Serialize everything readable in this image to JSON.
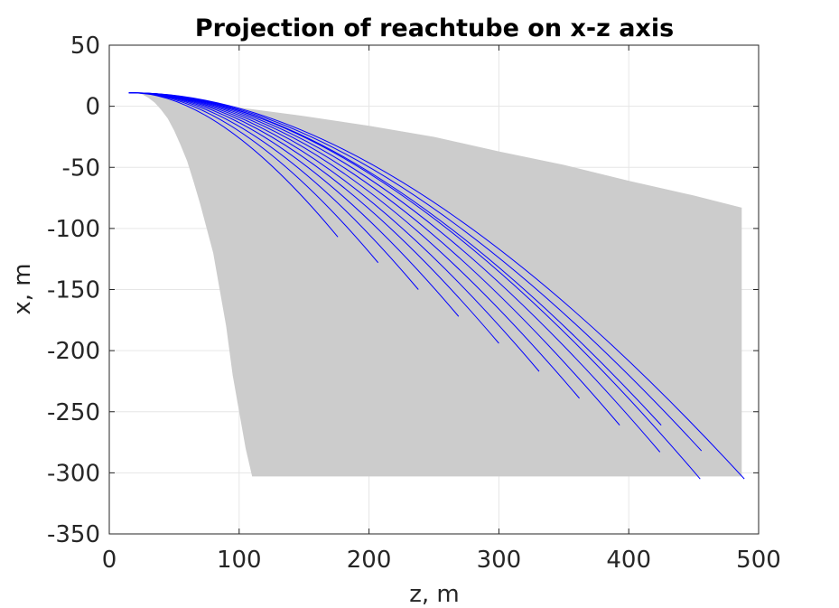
{
  "chart_data": {
    "type": "line",
    "title": "Projection of reachtube on x-z axis",
    "xlabel": "z, m",
    "ylabel": "x, m",
    "xlim": [
      0,
      500
    ],
    "ylim": [
      -350,
      50
    ],
    "xticks": [
      0,
      100,
      200,
      300,
      400,
      500
    ],
    "yticks": [
      50,
      0,
      -50,
      -100,
      -150,
      -200,
      -250,
      -300,
      -350
    ],
    "grid": true,
    "colors": {
      "reachtube": "#cccccc",
      "trajectory": "#0000ff",
      "grid": "#e6e6e6",
      "axis": "#262626"
    },
    "reachtube": {
      "upper": [
        [
          12,
          11
        ],
        [
          20,
          11
        ],
        [
          30,
          10
        ],
        [
          50,
          7
        ],
        [
          80,
          2
        ],
        [
          100,
          -1
        ],
        [
          150,
          -8
        ],
        [
          200,
          -16
        ],
        [
          250,
          -25
        ],
        [
          300,
          -37
        ],
        [
          350,
          -48
        ],
        [
          400,
          -61
        ],
        [
          450,
          -73
        ],
        [
          487,
          -83
        ],
        [
          487,
          -85
        ]
      ],
      "lower_right": [
        487,
        -303
      ],
      "lower_left": [
        110,
        -303
      ],
      "lower": [
        [
          110,
          -303
        ],
        [
          105,
          -280
        ],
        [
          100,
          -250
        ],
        [
          95,
          -220
        ],
        [
          90,
          -180
        ],
        [
          85,
          -150
        ],
        [
          80,
          -120
        ],
        [
          75,
          -100
        ],
        [
          70,
          -80
        ],
        [
          65,
          -62
        ],
        [
          60,
          -45
        ],
        [
          55,
          -32
        ],
        [
          50,
          -20
        ],
        [
          45,
          -10
        ],
        [
          40,
          -3
        ],
        [
          35,
          3
        ],
        [
          30,
          7
        ],
        [
          25,
          10
        ],
        [
          20,
          11
        ],
        [
          12,
          11
        ]
      ]
    },
    "series": [
      {
        "end": [
          176,
          -107
        ]
      },
      {
        "end": [
          207,
          -128
        ]
      },
      {
        "end": [
          238,
          -150
        ]
      },
      {
        "end": [
          269,
          -172
        ]
      },
      {
        "end": [
          300,
          -194
        ]
      },
      {
        "end": [
          331,
          -217
        ]
      },
      {
        "end": [
          362,
          -239
        ]
      },
      {
        "end": [
          393,
          -261
        ]
      },
      {
        "end": [
          424,
          -283
        ]
      },
      {
        "end": [
          455,
          -305
        ]
      },
      {
        "end": [
          425,
          -261
        ]
      },
      {
        "end": [
          456,
          -282
        ]
      },
      {
        "end": [
          489,
          -305
        ]
      }
    ],
    "series_start": [
      15,
      11
    ]
  }
}
